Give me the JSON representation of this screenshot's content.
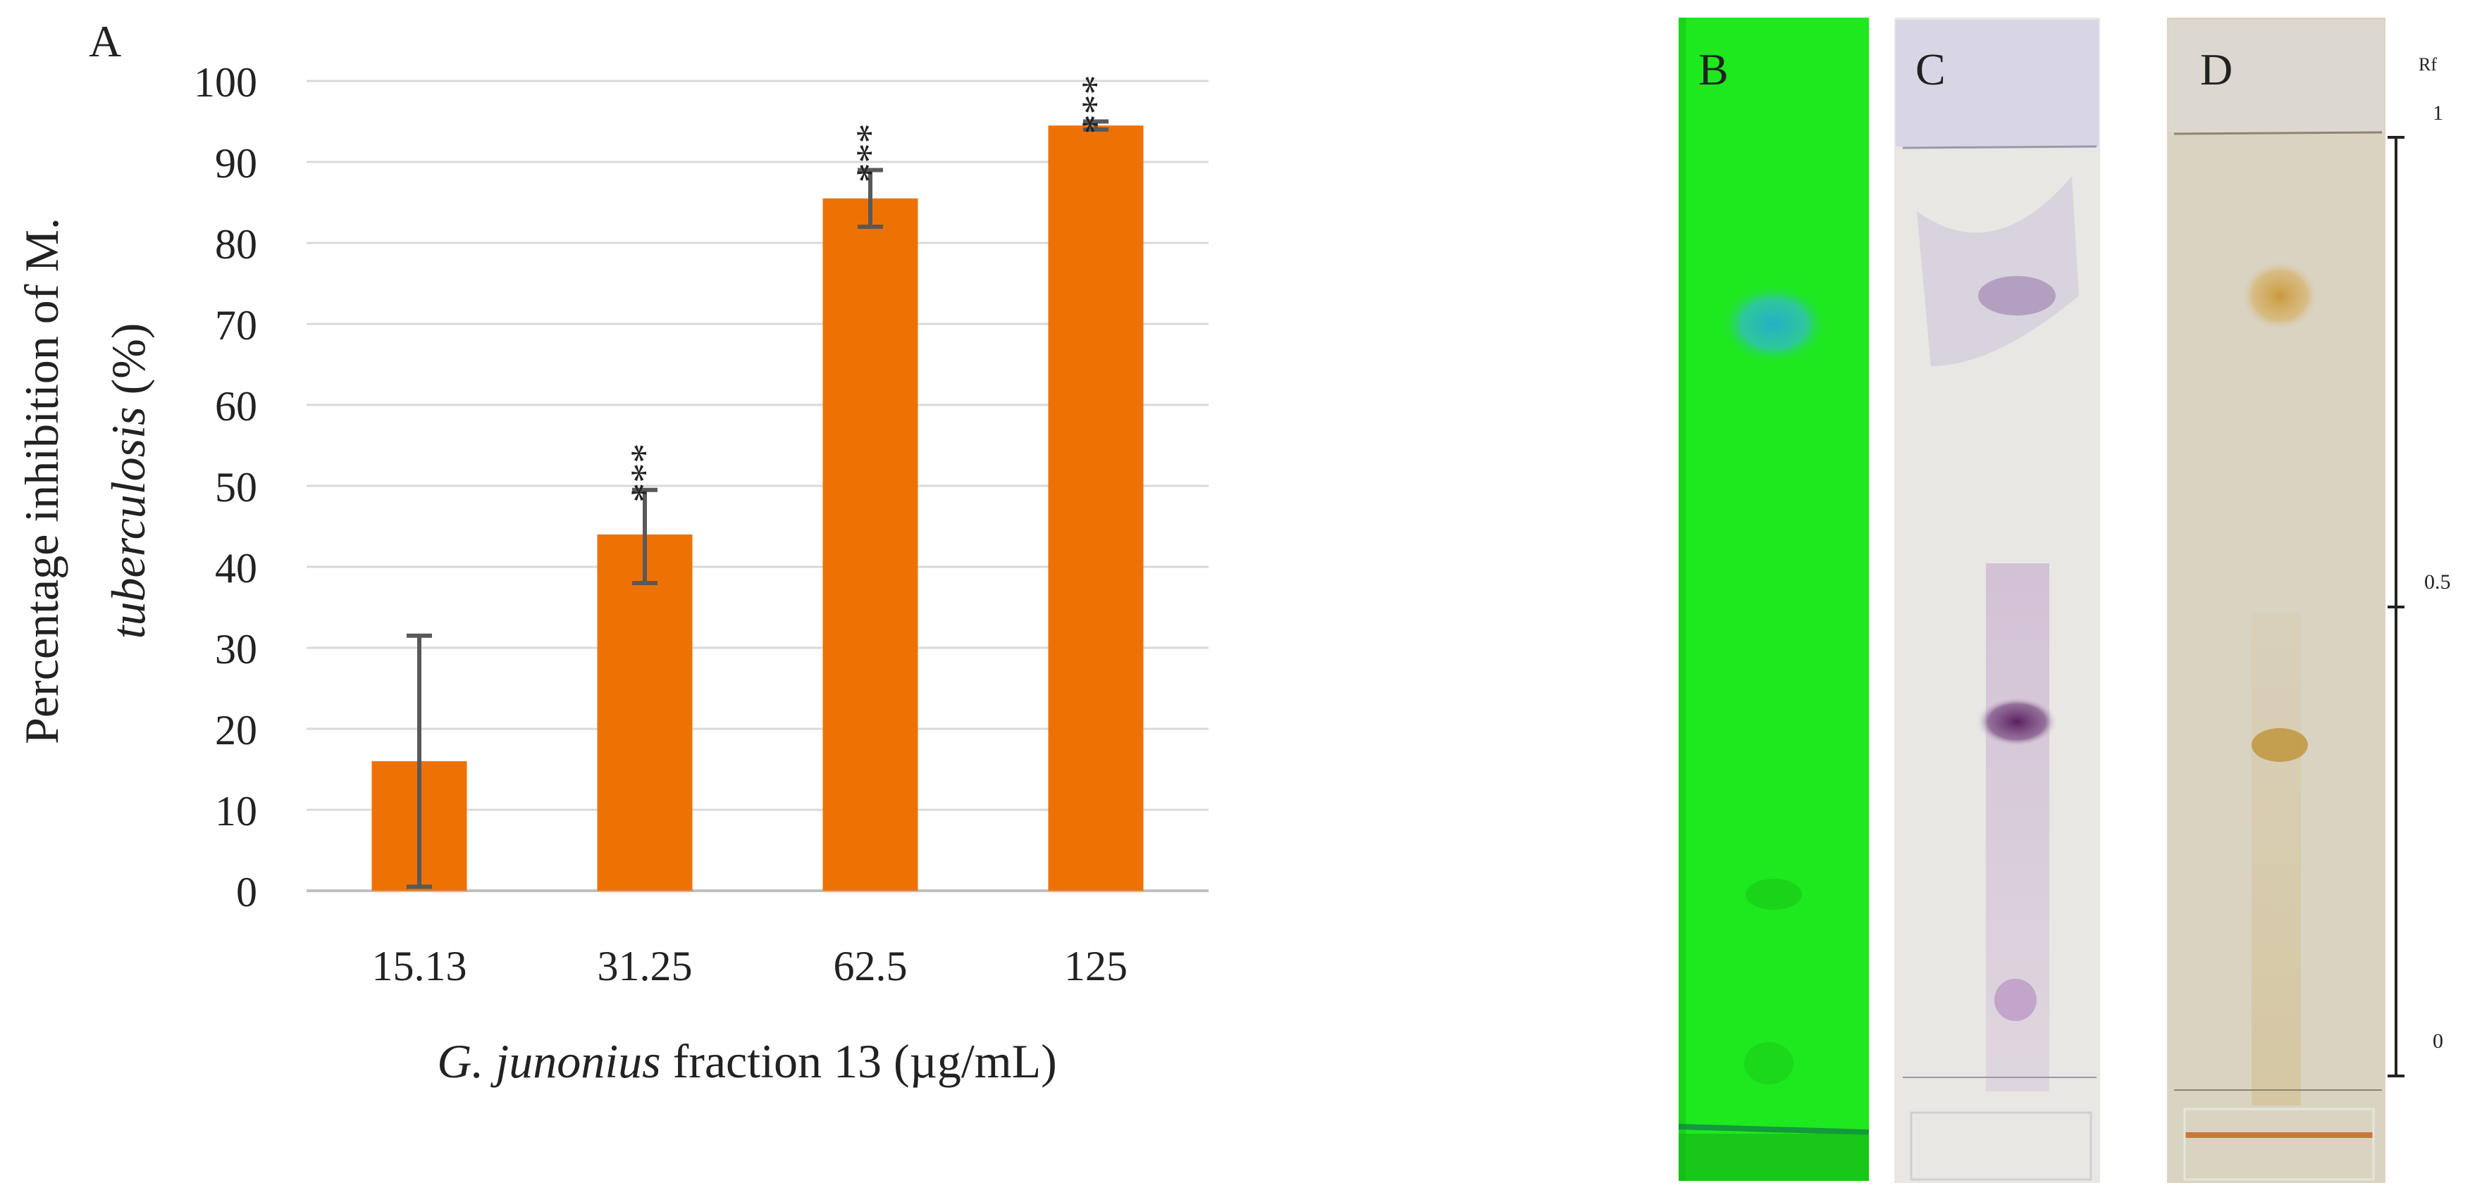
{
  "panel_a": {
    "label": "A",
    "ylabel": {
      "line1": "Percentage inhibition of M.",
      "line2_italic": "tuberculosis",
      "line2_rest": " (%)"
    },
    "xlabel": {
      "italic": "G. junonius",
      "rest": " fraction 13 (µg/mL)"
    }
  },
  "chart_data": {
    "type": "bar",
    "categories": [
      "15.13",
      "31.25",
      "62.5",
      "125"
    ],
    "values": [
      16,
      44,
      85.5,
      94.5
    ],
    "error_low": [
      0.5,
      38,
      82,
      94
    ],
    "error_high": [
      31.5,
      49.5,
      89,
      95
    ],
    "significance": [
      "",
      "***",
      "***",
      "***"
    ],
    "ylim": [
      0,
      100
    ],
    "yticks": [
      0,
      10,
      20,
      30,
      40,
      50,
      60,
      70,
      80,
      90,
      100
    ],
    "grid": true,
    "bar_color": "#EE7203",
    "error_color": "#595959"
  },
  "tlc": {
    "plates": [
      {
        "label": "B",
        "background": "#1EE81E"
      },
      {
        "label": "C",
        "background": "#E8E7E4"
      },
      {
        "label": "D",
        "background": "#D9D3C2"
      }
    ],
    "rf_scale": {
      "title": "Rf",
      "ticks": [
        "1",
        "0.5",
        "0"
      ]
    }
  }
}
